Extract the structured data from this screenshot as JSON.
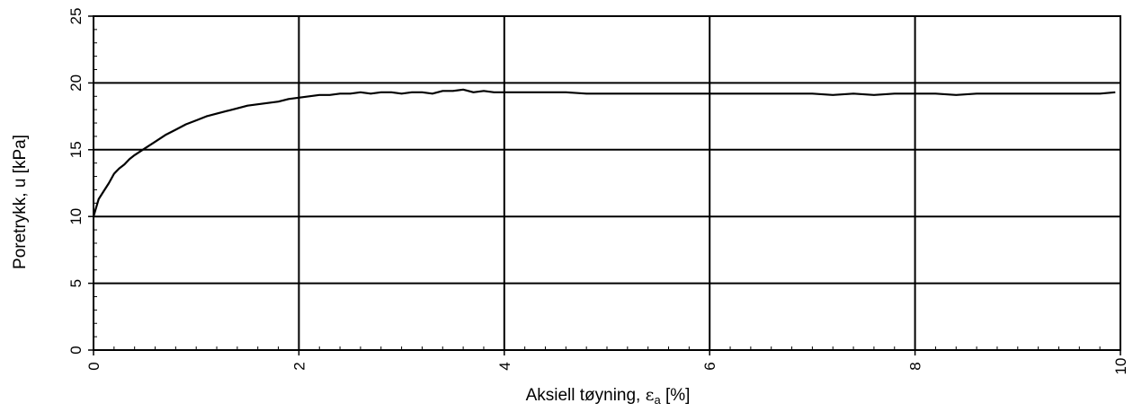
{
  "chart_data": {
    "type": "line",
    "xlabel": "Aksiell tøyning, εa [%]",
    "xlabel_parts": {
      "main": "Aksiell tøyning, ",
      "symbol": "ε",
      "sub": "a",
      "unit": " [%]"
    },
    "ylabel": "Poretrykk, u [kPa]",
    "xlim": [
      0,
      10
    ],
    "ylim": [
      0,
      25
    ],
    "x_ticks": [
      "0",
      "2",
      "4",
      "6",
      "8",
      "10"
    ],
    "y_ticks": [
      "0",
      "5",
      "10",
      "15",
      "20",
      "25"
    ],
    "grid": true,
    "line_color": "#000000",
    "series": [
      {
        "x": [
          0,
          0.05,
          0.1,
          0.15,
          0.2,
          0.25,
          0.3,
          0.35,
          0.4,
          0.5,
          0.6,
          0.7,
          0.8,
          0.9,
          1.0,
          1.1,
          1.2,
          1.3,
          1.4,
          1.5,
          1.6,
          1.7,
          1.8,
          1.9,
          2.0,
          2.1,
          2.2,
          2.3,
          2.4,
          2.5,
          2.6,
          2.7,
          2.8,
          2.9,
          3.0,
          3.1,
          3.2,
          3.3,
          3.4,
          3.5,
          3.6,
          3.7,
          3.8,
          3.9,
          4.0,
          4.2,
          4.4,
          4.6,
          4.8,
          5.0,
          5.2,
          5.4,
          5.6,
          5.8,
          6.0,
          6.2,
          6.4,
          6.6,
          6.8,
          7.0,
          7.2,
          7.4,
          7.6,
          7.8,
          8.0,
          8.2,
          8.4,
          8.6,
          8.8,
          9.0,
          9.2,
          9.4,
          9.6,
          9.8,
          9.95
        ],
        "y": [
          10.0,
          11.3,
          11.9,
          12.5,
          13.2,
          13.6,
          13.9,
          14.3,
          14.6,
          15.1,
          15.6,
          16.1,
          16.5,
          16.9,
          17.2,
          17.5,
          17.7,
          17.9,
          18.1,
          18.3,
          18.4,
          18.5,
          18.6,
          18.8,
          18.9,
          19.0,
          19.1,
          19.1,
          19.2,
          19.2,
          19.3,
          19.2,
          19.3,
          19.3,
          19.2,
          19.3,
          19.3,
          19.2,
          19.4,
          19.4,
          19.5,
          19.3,
          19.4,
          19.3,
          19.3,
          19.3,
          19.3,
          19.3,
          19.2,
          19.2,
          19.2,
          19.2,
          19.2,
          19.2,
          19.2,
          19.2,
          19.2,
          19.2,
          19.2,
          19.2,
          19.1,
          19.2,
          19.1,
          19.2,
          19.2,
          19.2,
          19.1,
          19.2,
          19.2,
          19.2,
          19.2,
          19.2,
          19.2,
          19.2,
          19.3
        ]
      }
    ]
  }
}
